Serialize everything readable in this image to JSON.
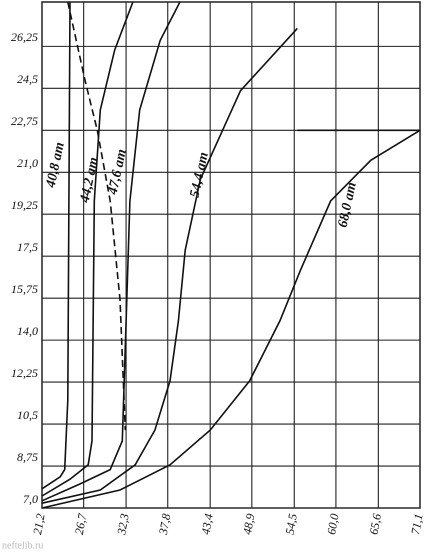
{
  "chart_data": {
    "type": "line",
    "xlim": [
      21.2,
      71.1
    ],
    "ylim": [
      7.0,
      28.1
    ],
    "xticks": [
      {
        "value": 21.2,
        "label": "21,2"
      },
      {
        "value": 26.7,
        "label": "26,7"
      },
      {
        "value": 32.3,
        "label": "32,3"
      },
      {
        "value": 37.8,
        "label": "37,8"
      },
      {
        "value": 43.4,
        "label": "43,4"
      },
      {
        "value": 48.9,
        "label": "48,9"
      },
      {
        "value": 54.5,
        "label": "54,5"
      },
      {
        "value": 60.0,
        "label": "60,0"
      },
      {
        "value": 65.6,
        "label": "65,6"
      },
      {
        "value": 71.1,
        "label": "71,1"
      }
    ],
    "yticks": [
      {
        "value": 7.0,
        "label": "7,0"
      },
      {
        "value": 8.75,
        "label": "8,75"
      },
      {
        "value": 10.5,
        "label": "10,5"
      },
      {
        "value": 12.25,
        "label": "12,25"
      },
      {
        "value": 14.0,
        "label": "14,0"
      },
      {
        "value": 15.75,
        "label": "15,75"
      },
      {
        "value": 17.5,
        "label": "17,5"
      },
      {
        "value": 19.25,
        "label": "19,25"
      },
      {
        "value": 21.0,
        "label": "21,0"
      },
      {
        "value": 22.75,
        "label": "22,75"
      },
      {
        "value": 24.5,
        "label": "24,5"
      },
      {
        "value": 26.25,
        "label": "26,25"
      }
    ],
    "grid": true,
    "series": [
      {
        "name": "40,8 ат",
        "color": "#111111",
        "x": [
          21.2,
          23.6,
          24.2,
          24.6,
          24.9
        ],
        "values": [
          7.8,
          8.3,
          8.6,
          11.5,
          28.1
        ]
      },
      {
        "name": "44,2 ат",
        "color": "#111111",
        "x": [
          21.2,
          24.9,
          27.3,
          27.8,
          28.1,
          28.9,
          30.8,
          33.2
        ],
        "values": [
          7.5,
          8.2,
          8.8,
          9.8,
          19.8,
          23.6,
          26.1,
          28.1
        ]
      },
      {
        "name": "47,6 ат",
        "color": "#111111",
        "x": [
          21.2,
          26.2,
          30.2,
          31.8,
          32.4,
          32.8,
          34.1,
          36.8,
          39.4
        ],
        "values": [
          7.3,
          8.0,
          8.6,
          9.8,
          15.7,
          19.8,
          23.6,
          26.5,
          28.1
        ]
      },
      {
        "name": "54,4 ат",
        "color": "#111111",
        "x": [
          21.2,
          28.9,
          33.5,
          36.1,
          38.1,
          39.2,
          40.1,
          42.1,
          47.4,
          54.9
        ],
        "values": [
          7.2,
          7.75,
          8.8,
          10.25,
          12.3,
          14.8,
          17.75,
          20.7,
          24.4,
          27.0
        ]
      },
      {
        "name": "68,0 ат",
        "color": "#111111",
        "x": [
          21.2,
          31.5,
          38.1,
          43.4,
          48.6,
          52.6,
          55.3,
          59.3,
          64.6,
          71.1
        ],
        "values": [
          7.0,
          7.75,
          8.8,
          10.25,
          12.3,
          14.8,
          16.9,
          19.8,
          21.5,
          22.75
        ]
      },
      {
        "color": "#111111",
        "dashed": true,
        "x": [
          24.6,
          26.9,
          28.5,
          30.2,
          31.5,
          32.2
        ],
        "values": [
          28.1,
          24.8,
          22.75,
          19.8,
          15.7,
          10.25
        ]
      },
      {
        "color": "#111111",
        "x": [
          54.9,
          71.1
        ],
        "values": [
          22.75,
          22.75
        ]
      }
    ],
    "watermark": "neftelib.ru"
  }
}
